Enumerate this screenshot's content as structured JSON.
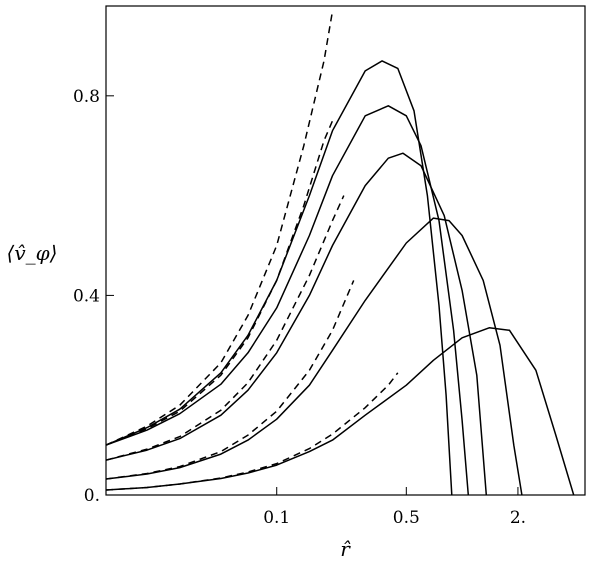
{
  "chart_data": {
    "type": "line",
    "title": "",
    "xlabel": "r̂",
    "ylabel": "⟨v̂_φ⟩",
    "xscale": "log",
    "xlim": [
      0.012,
      4.6
    ],
    "ylim": [
      0.0,
      0.98
    ],
    "xticks": [
      {
        "value": 0.1,
        "label": "0.1"
      },
      {
        "value": 0.5,
        "label": "0.5"
      },
      {
        "value": 2.0,
        "label": "2."
      }
    ],
    "yticks": [
      {
        "value": 0.0,
        "label": "0."
      },
      {
        "value": 0.4,
        "label": "0.4"
      },
      {
        "value": 0.8,
        "label": "0.8"
      }
    ],
    "grid": false,
    "legend": "none",
    "series": [
      {
        "style": "solid",
        "points": [
          [
            0.012,
            0.1
          ],
          [
            0.02,
            0.135
          ],
          [
            0.03,
            0.172
          ],
          [
            0.05,
            0.245
          ],
          [
            0.07,
            0.32
          ],
          [
            0.1,
            0.43
          ],
          [
            0.15,
            0.6
          ],
          [
            0.2,
            0.73
          ],
          [
            0.3,
            0.85
          ],
          [
            0.37,
            0.87
          ],
          [
            0.45,
            0.855
          ],
          [
            0.55,
            0.77
          ],
          [
            0.65,
            0.6
          ],
          [
            0.75,
            0.38
          ],
          [
            0.82,
            0.2
          ],
          [
            0.88,
            0.0
          ]
        ]
      },
      {
        "style": "solid",
        "points": [
          [
            0.012,
            0.1
          ],
          [
            0.02,
            0.13
          ],
          [
            0.03,
            0.163
          ],
          [
            0.05,
            0.222
          ],
          [
            0.07,
            0.285
          ],
          [
            0.1,
            0.375
          ],
          [
            0.15,
            0.52
          ],
          [
            0.2,
            0.64
          ],
          [
            0.3,
            0.76
          ],
          [
            0.4,
            0.78
          ],
          [
            0.5,
            0.76
          ],
          [
            0.6,
            0.7
          ],
          [
            0.75,
            0.55
          ],
          [
            0.9,
            0.33
          ],
          [
            1.0,
            0.15
          ],
          [
            1.08,
            0.0
          ]
        ]
      },
      {
        "style": "solid",
        "points": [
          [
            0.012,
            0.07
          ],
          [
            0.02,
            0.09
          ],
          [
            0.03,
            0.113
          ],
          [
            0.05,
            0.16
          ],
          [
            0.07,
            0.21
          ],
          [
            0.1,
            0.285
          ],
          [
            0.15,
            0.4
          ],
          [
            0.2,
            0.5
          ],
          [
            0.3,
            0.62
          ],
          [
            0.4,
            0.675
          ],
          [
            0.48,
            0.685
          ],
          [
            0.6,
            0.66
          ],
          [
            0.8,
            0.56
          ],
          [
            1.0,
            0.41
          ],
          [
            1.2,
            0.24
          ],
          [
            1.35,
            0.0
          ]
        ]
      },
      {
        "style": "solid",
        "points": [
          [
            0.012,
            0.032
          ],
          [
            0.02,
            0.042
          ],
          [
            0.03,
            0.055
          ],
          [
            0.05,
            0.082
          ],
          [
            0.07,
            0.11
          ],
          [
            0.1,
            0.152
          ],
          [
            0.15,
            0.22
          ],
          [
            0.2,
            0.29
          ],
          [
            0.3,
            0.39
          ],
          [
            0.5,
            0.505
          ],
          [
            0.7,
            0.555
          ],
          [
            0.85,
            0.55
          ],
          [
            1.0,
            0.52
          ],
          [
            1.3,
            0.43
          ],
          [
            1.6,
            0.3
          ],
          [
            1.9,
            0.1
          ],
          [
            2.1,
            0.0
          ]
        ]
      },
      {
        "style": "solid",
        "points": [
          [
            0.012,
            0.01
          ],
          [
            0.02,
            0.015
          ],
          [
            0.03,
            0.022
          ],
          [
            0.05,
            0.033
          ],
          [
            0.07,
            0.044
          ],
          [
            0.1,
            0.06
          ],
          [
            0.15,
            0.087
          ],
          [
            0.2,
            0.11
          ],
          [
            0.3,
            0.16
          ],
          [
            0.5,
            0.22
          ],
          [
            0.7,
            0.27
          ],
          [
            1.0,
            0.315
          ],
          [
            1.4,
            0.335
          ],
          [
            1.8,
            0.33
          ],
          [
            2.5,
            0.25
          ],
          [
            3.2,
            0.12
          ],
          [
            4.0,
            0.0
          ]
        ]
      },
      {
        "style": "dashed",
        "points": [
          [
            0.012,
            0.1
          ],
          [
            0.02,
            0.138
          ],
          [
            0.03,
            0.18
          ],
          [
            0.05,
            0.265
          ],
          [
            0.07,
            0.36
          ],
          [
            0.1,
            0.5
          ],
          [
            0.14,
            0.7
          ],
          [
            0.18,
            0.87
          ],
          [
            0.2,
            0.97
          ]
        ]
      },
      {
        "style": "dashed",
        "points": [
          [
            0.012,
            0.1
          ],
          [
            0.02,
            0.133
          ],
          [
            0.03,
            0.168
          ],
          [
            0.05,
            0.24
          ],
          [
            0.07,
            0.315
          ],
          [
            0.1,
            0.43
          ],
          [
            0.14,
            0.58
          ],
          [
            0.18,
            0.71
          ],
          [
            0.2,
            0.75
          ]
        ]
      },
      {
        "style": "dashed",
        "points": [
          [
            0.012,
            0.07
          ],
          [
            0.02,
            0.092
          ],
          [
            0.03,
            0.117
          ],
          [
            0.05,
            0.17
          ],
          [
            0.07,
            0.225
          ],
          [
            0.1,
            0.31
          ],
          [
            0.15,
            0.44
          ],
          [
            0.2,
            0.55
          ],
          [
            0.23,
            0.6
          ]
        ]
      },
      {
        "style": "dashed",
        "points": [
          [
            0.012,
            0.032
          ],
          [
            0.02,
            0.043
          ],
          [
            0.03,
            0.057
          ],
          [
            0.05,
            0.087
          ],
          [
            0.07,
            0.12
          ],
          [
            0.1,
            0.168
          ],
          [
            0.15,
            0.25
          ],
          [
            0.2,
            0.33
          ],
          [
            0.26,
            0.43
          ]
        ]
      },
      {
        "style": "dashed",
        "points": [
          [
            0.012,
            0.01
          ],
          [
            0.02,
            0.015
          ],
          [
            0.03,
            0.022
          ],
          [
            0.05,
            0.034
          ],
          [
            0.07,
            0.046
          ],
          [
            0.1,
            0.063
          ],
          [
            0.15,
            0.093
          ],
          [
            0.2,
            0.122
          ],
          [
            0.3,
            0.175
          ],
          [
            0.4,
            0.22
          ],
          [
            0.45,
            0.245
          ]
        ]
      }
    ]
  }
}
